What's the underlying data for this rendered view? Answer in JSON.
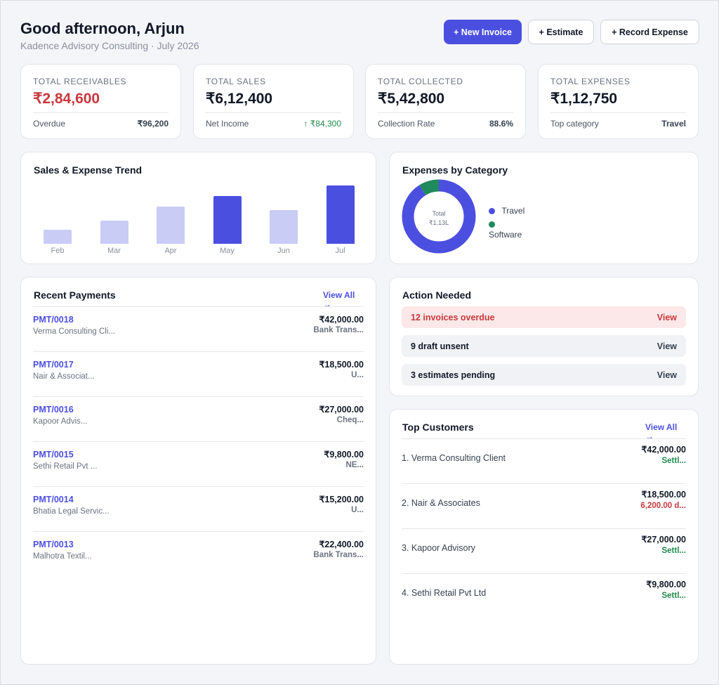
{
  "header": {
    "greeting": "Good afternoon, Arjun",
    "subtitle": "Kadence Advisory Consulting · July 2026",
    "new_invoice": "+ New Invoice",
    "estimate": "+ Estimate",
    "record_expense": "+ Record Expense"
  },
  "stats": [
    {
      "label": "TOTAL RECEIVABLES",
      "value": "₹2,84,600",
      "foot_label": "Overdue",
      "foot_value": "₹96,200"
    },
    {
      "label": "TOTAL SALES",
      "value": "₹6,12,400",
      "foot_label": "Net Income",
      "foot_value": "↑ ₹84,300"
    },
    {
      "label": "TOTAL COLLECTED",
      "value": "₹5,42,800",
      "foot_label": "Collection Rate",
      "foot_value": "88.6%"
    },
    {
      "label": "TOTAL EXPENSES",
      "value": "₹1,12,750",
      "foot_label": "Top category",
      "foot_value": "Travel"
    }
  ],
  "trend": {
    "title": "Sales & Expense Trend"
  },
  "chart_data": {
    "type": "bar",
    "categories": [
      "Feb",
      "Mar",
      "Apr",
      "May",
      "Jun",
      "Jul"
    ],
    "values": [
      20,
      33,
      53,
      68,
      48,
      83
    ],
    "highlighted": [
      false,
      false,
      false,
      true,
      false,
      true
    ],
    "colors": {
      "normal": "#c9ccf5",
      "highlight": "#4b4fe0"
    },
    "ylim": [
      0,
      100
    ],
    "grid": false
  },
  "expenses": {
    "title": "Expenses by Category",
    "center_label": "Total",
    "center_value": "₹1.13L",
    "legend": [
      {
        "name": "Travel",
        "color": "#4b4fe0"
      },
      {
        "name": "Software",
        "color": "#1f8a5c"
      }
    ],
    "shares": [
      0.91,
      0.09
    ]
  },
  "payments": {
    "title": "Recent Payments",
    "view_all": "View All →",
    "rows": [
      {
        "id": "PMT/0018",
        "name": "Verma Consulting Cli...",
        "amount": "₹42,000.00",
        "method": "Bank Trans..."
      },
      {
        "id": "PMT/0017",
        "name": "Nair & Associat...",
        "amount": "₹18,500.00",
        "method": "U..."
      },
      {
        "id": "PMT/0016",
        "name": "Kapoor Advis...",
        "amount": "₹27,000.00",
        "method": "Cheq..."
      },
      {
        "id": "PMT/0015",
        "name": "Sethi Retail Pvt ...",
        "amount": "₹9,800.00",
        "method": "NE..."
      },
      {
        "id": "PMT/0014",
        "name": "Bhatia Legal Servic...",
        "amount": "₹15,200.00",
        "method": "U..."
      },
      {
        "id": "PMT/0013",
        "name": "Malhotra Textil...",
        "amount": "₹22,400.00",
        "method": "Bank Trans..."
      }
    ]
  },
  "actions": {
    "title": "Action Needed",
    "rows": [
      {
        "text": "12 invoices overdue",
        "view": "View"
      },
      {
        "text": "9 draft unsent",
        "view": "View"
      },
      {
        "text": "3 estimates pending",
        "view": "View"
      }
    ]
  },
  "customers": {
    "title": "Top Customers",
    "view_all": "View All →",
    "rows": [
      {
        "name": "1. Verma Consulting Client",
        "amount": "₹42,000.00",
        "status": "Settl..."
      },
      {
        "name": "2. Nair & Associates",
        "amount": "₹18,500.00",
        "status": "6,200.00 d..."
      },
      {
        "name": "3. Kapoor Advisory",
        "amount": "₹27,000.00",
        "status": "Settl..."
      },
      {
        "name": "4. Sethi Retail Pvt Ltd",
        "amount": "₹9,800.00",
        "status": "Settl..."
      }
    ]
  }
}
